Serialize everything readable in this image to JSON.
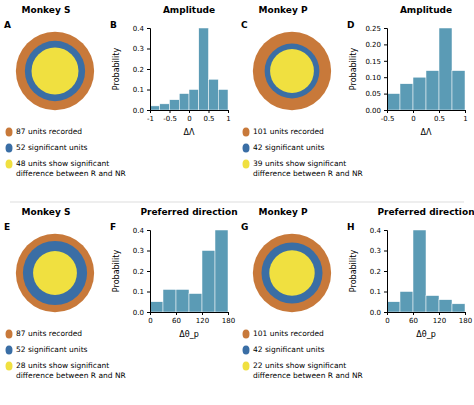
{
  "chart_data": [
    {
      "type": "circles",
      "title": "Monkey S",
      "annotations": [
        "A"
      ],
      "xlim": [
        -1.15,
        1.15
      ],
      "ylim": [
        -1.15,
        1.15
      ],
      "tick_labels": false,
      "legend": "bottom",
      "series": [
        {
          "name": "87 units recorded",
          "color": "#C8793A",
          "values": [
            1.0
          ]
        },
        {
          "name": "52 significant units",
          "color": "#3A6EA5",
          "values": [
            0.77
          ]
        },
        {
          "name": "48 units show significant\ndifference between R and NR",
          "color": "#F0E040",
          "values": [
            0.6
          ]
        }
      ]
    },
    {
      "type": "histogram",
      "title": "Amplitude",
      "annotations": [
        "B"
      ],
      "xlabel": "ΔΛ",
      "ylabel": "Probability",
      "color": "#5B9BB5",
      "grid": false,
      "bins": [
        -1.0,
        -0.75,
        -0.5,
        -0.25,
        0.0,
        0.25,
        0.5,
        0.75,
        1.0
      ],
      "values": [
        0.02,
        0.03,
        0.05,
        0.08,
        0.1,
        0.4,
        0.15,
        0.1
      ],
      "xlim": [
        -1.0,
        1.0
      ],
      "xticks": [
        -1,
        -0.5,
        0,
        0.5,
        1
      ],
      "ylim": [
        0,
        0.4
      ],
      "yticks": [
        {
          "value": 0.0,
          "label": "0.0"
        },
        {
          "value": 0.1,
          "label": "0.1"
        },
        {
          "value": 0.2,
          "label": "0.2"
        },
        {
          "value": 0.3,
          "label": "0.3"
        },
        {
          "value": 0.4,
          "label": "0.4"
        }
      ]
    },
    {
      "type": "circles",
      "title": "Monkey P",
      "annotations": [
        "C"
      ],
      "xlim": [
        -1.15,
        1.15
      ],
      "ylim": [
        -1.15,
        1.15
      ],
      "tick_labels": false,
      "legend": "bottom",
      "series": [
        {
          "name": "101 units recorded",
          "color": "#C8793A",
          "values": [
            1.0
          ]
        },
        {
          "name": "42 significant units",
          "color": "#3A6EA5",
          "values": [
            0.7
          ]
        },
        {
          "name": "39 units show significant\ndifference between R and NR",
          "color": "#F0E040",
          "values": [
            0.56
          ]
        }
      ]
    },
    {
      "type": "histogram",
      "title": "Amplitude",
      "annotations": [
        "D"
      ],
      "xlabel": "ΔΛ",
      "ylabel": "Probability",
      "color": "#5B9BB5",
      "grid": false,
      "bins": [
        -0.5,
        -0.25,
        0.0,
        0.25,
        0.5,
        0.75,
        1.0
      ],
      "values": [
        0.05,
        0.08,
        0.1,
        0.12,
        0.25,
        0.12
      ],
      "xlim": [
        -0.5,
        1.0
      ],
      "xticks": [
        -0.5,
        0,
        0.5,
        1
      ],
      "ylim": [
        0,
        0.25
      ],
      "yticks": [
        {
          "value": 0.0,
          "label": "0.00"
        },
        {
          "value": 0.05,
          "label": "0.05"
        },
        {
          "value": 0.1,
          "label": "0.10"
        },
        {
          "value": 0.15,
          "label": "0.15"
        },
        {
          "value": 0.2,
          "label": "0.20"
        },
        {
          "value": 0.25,
          "label": "0.25"
        }
      ]
    },
    {
      "type": "circles",
      "title": "Monkey S",
      "annotations": [
        "E"
      ],
      "xlim": [
        -1.15,
        1.15
      ],
      "ylim": [
        -1.15,
        1.15
      ],
      "tick_labels": false,
      "legend": "bottom",
      "series": [
        {
          "name": "87 units recorded",
          "color": "#C8793A",
          "values": [
            1.0
          ]
        },
        {
          "name": "52 significant units",
          "color": "#3A6EA5",
          "values": [
            0.82
          ]
        },
        {
          "name": "28 units show significant\ndifference between R and NR",
          "color": "#F0E040",
          "values": [
            0.56
          ]
        }
      ]
    },
    {
      "type": "histogram",
      "title": "Preferred direction",
      "annotations": [
        "F"
      ],
      "xlabel": "Δθ_p",
      "ylabel": "Probability",
      "color": "#5B9BB5",
      "grid": false,
      "bins": [
        0,
        30,
        60,
        90,
        120,
        150,
        180
      ],
      "values": [
        0.05,
        0.11,
        0.11,
        0.09,
        0.3,
        0.4
      ],
      "xlim": [
        0,
        180
      ],
      "xticks": [
        0,
        60,
        120,
        180
      ],
      "ylim": [
        0,
        0.4
      ],
      "yticks": [
        {
          "value": 0.0,
          "label": "0.0"
        },
        {
          "value": 0.1,
          "label": "0.1"
        },
        {
          "value": 0.2,
          "label": "0.2"
        },
        {
          "value": 0.3,
          "label": "0.3"
        },
        {
          "value": 0.4,
          "label": "0.4"
        }
      ]
    },
    {
      "type": "circles",
      "title": "Monkey P",
      "annotations": [
        "G"
      ],
      "xlim": [
        -1.15,
        1.15
      ],
      "ylim": [
        -1.15,
        1.15
      ],
      "tick_labels": false,
      "legend": "bottom",
      "series": [
        {
          "name": "101 units recorded",
          "color": "#C8793A",
          "values": [
            1.0
          ]
        },
        {
          "name": "42 significant units",
          "color": "#3A6EA5",
          "values": [
            0.78
          ]
        },
        {
          "name": "22 units show significant\ndifference between R and NR",
          "color": "#F0E040",
          "values": [
            0.58
          ]
        }
      ]
    },
    {
      "type": "histogram",
      "title": "Preferred direction",
      "annotations": [
        "H"
      ],
      "xlabel": "Δθ_p",
      "ylabel": "Probability",
      "color": "#5B9BB5",
      "grid": false,
      "bins": [
        0,
        30,
        60,
        90,
        120,
        150,
        180
      ],
      "values": [
        0.05,
        0.1,
        0.4,
        0.08,
        0.06,
        0.04
      ],
      "xlim": [
        0,
        180
      ],
      "xticks": [
        0,
        60,
        120,
        180
      ],
      "ylim": [
        0,
        0.4
      ],
      "yticks": [
        {
          "value": 0.0,
          "label": "0.0"
        },
        {
          "value": 0.1,
          "label": "0.1"
        },
        {
          "value": 0.2,
          "label": "0.2"
        },
        {
          "value": 0.3,
          "label": "0.3"
        },
        {
          "value": 0.4,
          "label": "0.4"
        }
      ]
    }
  ]
}
